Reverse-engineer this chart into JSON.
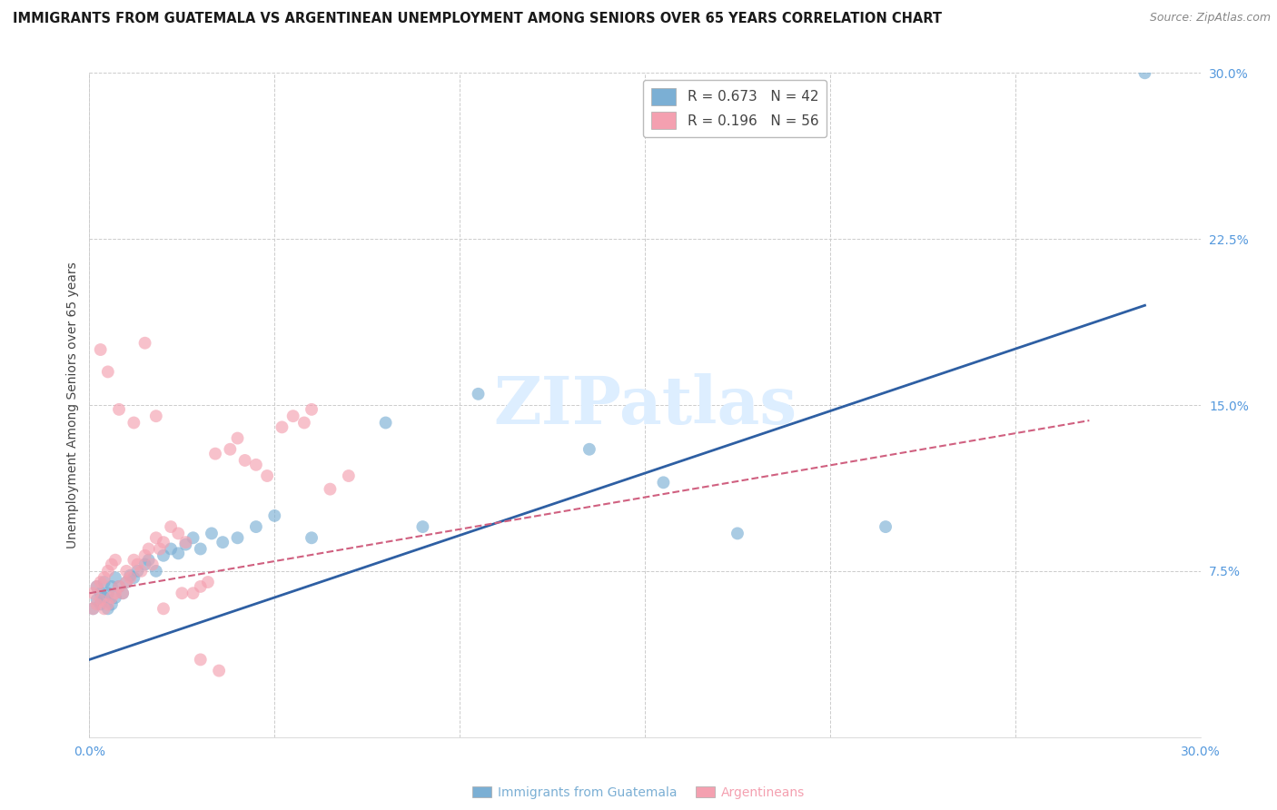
{
  "title": "IMMIGRANTS FROM GUATEMALA VS ARGENTINEAN UNEMPLOYMENT AMONG SENIORS OVER 65 YEARS CORRELATION CHART",
  "source": "Source: ZipAtlas.com",
  "ylabel": "Unemployment Among Seniors over 65 years",
  "xlim": [
    0.0,
    0.3
  ],
  "ylim": [
    0.0,
    0.3
  ],
  "xticks": [
    0.0,
    0.05,
    0.1,
    0.15,
    0.2,
    0.25,
    0.3
  ],
  "xticklabels": [
    "0.0%",
    "",
    "",
    "",
    "",
    "",
    "30.0%"
  ],
  "yticks": [
    0.0,
    0.075,
    0.15,
    0.225,
    0.3
  ],
  "yticklabels_right": [
    "",
    "7.5%",
    "15.0%",
    "22.5%",
    "30.0%"
  ],
  "legend_blue_r": "0.673",
  "legend_blue_n": "42",
  "legend_pink_r": "0.196",
  "legend_pink_n": "56",
  "legend_label_blue": "Immigrants from Guatemala",
  "legend_label_pink": "Argentineans",
  "blue_color": "#7BAFD4",
  "pink_color": "#F4A0B0",
  "line_blue_color": "#2E5FA3",
  "line_pink_color": "#D06080",
  "watermark_text": "ZIPatlas",
  "watermark_color": "#DDEEFF",
  "blue_scatter_x": [
    0.001,
    0.002,
    0.002,
    0.003,
    0.003,
    0.004,
    0.004,
    0.005,
    0.005,
    0.006,
    0.006,
    0.007,
    0.007,
    0.008,
    0.009,
    0.01,
    0.011,
    0.012,
    0.013,
    0.015,
    0.016,
    0.018,
    0.02,
    0.022,
    0.024,
    0.026,
    0.028,
    0.03,
    0.033,
    0.036,
    0.04,
    0.045,
    0.05,
    0.06,
    0.08,
    0.09,
    0.105,
    0.135,
    0.155,
    0.175,
    0.215,
    0.285
  ],
  "blue_scatter_y": [
    0.058,
    0.062,
    0.068,
    0.06,
    0.065,
    0.063,
    0.07,
    0.058,
    0.065,
    0.06,
    0.068,
    0.063,
    0.072,
    0.068,
    0.065,
    0.07,
    0.073,
    0.072,
    0.075,
    0.078,
    0.08,
    0.075,
    0.082,
    0.085,
    0.083,
    0.087,
    0.09,
    0.085,
    0.092,
    0.088,
    0.09,
    0.095,
    0.1,
    0.09,
    0.142,
    0.095,
    0.155,
    0.13,
    0.115,
    0.092,
    0.095,
    0.3
  ],
  "pink_scatter_x": [
    0.001,
    0.001,
    0.002,
    0.002,
    0.003,
    0.003,
    0.004,
    0.004,
    0.005,
    0.005,
    0.006,
    0.006,
    0.007,
    0.007,
    0.008,
    0.009,
    0.01,
    0.01,
    0.011,
    0.012,
    0.013,
    0.014,
    0.015,
    0.016,
    0.017,
    0.018,
    0.019,
    0.02,
    0.022,
    0.024,
    0.026,
    0.028,
    0.03,
    0.032,
    0.034,
    0.038,
    0.04,
    0.042,
    0.045,
    0.048,
    0.052,
    0.055,
    0.058,
    0.06,
    0.065,
    0.07,
    0.003,
    0.005,
    0.008,
    0.012,
    0.015,
    0.018,
    0.02,
    0.025,
    0.03,
    0.035
  ],
  "pink_scatter_y": [
    0.058,
    0.065,
    0.06,
    0.068,
    0.062,
    0.07,
    0.058,
    0.072,
    0.06,
    0.075,
    0.063,
    0.078,
    0.065,
    0.08,
    0.068,
    0.065,
    0.07,
    0.075,
    0.072,
    0.08,
    0.078,
    0.075,
    0.082,
    0.085,
    0.078,
    0.09,
    0.085,
    0.088,
    0.095,
    0.092,
    0.088,
    0.065,
    0.068,
    0.07,
    0.128,
    0.13,
    0.135,
    0.125,
    0.123,
    0.118,
    0.14,
    0.145,
    0.142,
    0.148,
    0.112,
    0.118,
    0.175,
    0.165,
    0.148,
    0.142,
    0.178,
    0.145,
    0.058,
    0.065,
    0.035,
    0.03
  ],
  "blue_line_x": [
    0.0,
    0.285
  ],
  "blue_line_y": [
    0.035,
    0.195
  ],
  "pink_line_x": [
    0.0,
    0.27
  ],
  "pink_line_y": [
    0.065,
    0.143
  ],
  "background_color": "#FFFFFF",
  "grid_color": "#CCCCCC",
  "title_fontsize": 10.5,
  "ylabel_fontsize": 10,
  "tick_fontsize": 10,
  "legend_fontsize": 11,
  "scatter_size": 100,
  "scatter_alpha": 0.65
}
